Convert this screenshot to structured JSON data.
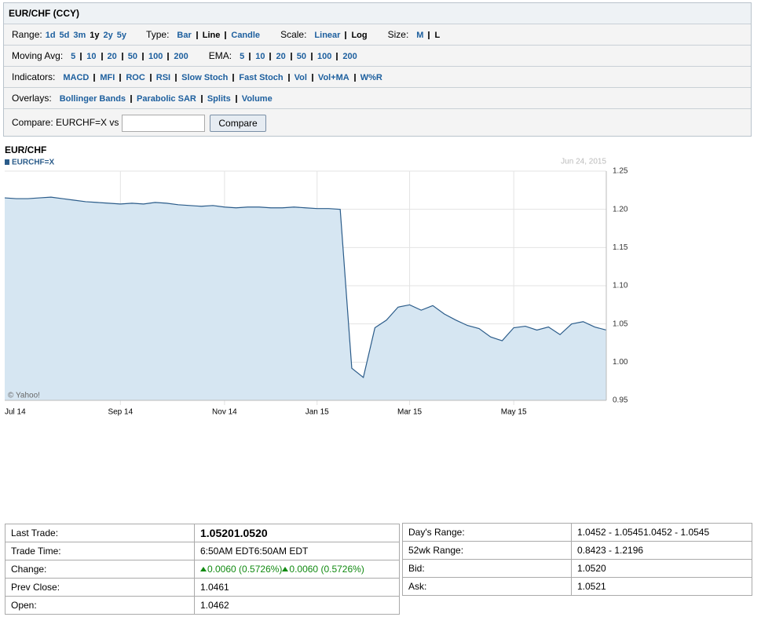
{
  "header": {
    "title": "EUR/CHF (CCY)"
  },
  "controls": [
    [
      {
        "label": "Range:",
        "options": [
          "1d",
          "5d",
          "3m",
          "1y",
          "2y",
          "5y"
        ],
        "active": "1y",
        "separated": false
      },
      {
        "label": "Type:",
        "options": [
          "Bar",
          "Line",
          "Candle"
        ],
        "active": "Line",
        "separated": true
      },
      {
        "label": "Scale:",
        "options": [
          "Linear",
          "Log"
        ],
        "active": "Log",
        "separated": true
      },
      {
        "label": "Size:",
        "options": [
          "M",
          "L"
        ],
        "active": "L",
        "separated": true
      }
    ],
    [
      {
        "label": "Moving Avg:",
        "options": [
          "5",
          "10",
          "20",
          "50",
          "100",
          "200"
        ],
        "separated": true
      },
      {
        "label": "EMA:",
        "options": [
          "5",
          "10",
          "20",
          "50",
          "100",
          "200"
        ],
        "separated": true
      }
    ],
    [
      {
        "label": "Indicators:",
        "options": [
          "MACD",
          "MFI",
          "ROC",
          "RSI",
          "Slow Stoch",
          "Fast Stoch",
          "Vol",
          "Vol+MA",
          "W%R"
        ],
        "separated": true
      }
    ],
    [
      {
        "label": "Overlays:",
        "options": [
          "Bollinger Bands",
          "Parabolic SAR",
          "Splits",
          "Volume"
        ],
        "separated": true
      }
    ]
  ],
  "compare": {
    "label": "Compare:",
    "symbol": "EURCHF=X vs",
    "button": "Compare"
  },
  "chart_data": {
    "type": "area",
    "title": "EUR/CHF",
    "date": "Jun 24, 2015",
    "credit": "© Yahoo!",
    "categories": [
      "Jul 14",
      null,
      null,
      null,
      null,
      null,
      null,
      null,
      null,
      null,
      "Sep 14",
      null,
      null,
      null,
      null,
      null,
      null,
      null,
      null,
      "Nov 14",
      null,
      null,
      null,
      null,
      null,
      null,
      null,
      "Jan 15",
      null,
      null,
      null,
      null,
      null,
      null,
      null,
      "Mar 15",
      null,
      null,
      null,
      null,
      null,
      null,
      null,
      null,
      "May 15",
      null,
      null,
      null,
      null,
      null,
      null,
      null,
      null
    ],
    "series": [
      {
        "name": "EURCHF=X",
        "color": "#2b5c8a",
        "fill": "#d6e6f2",
        "values": [
          1.215,
          1.214,
          1.214,
          1.215,
          1.216,
          1.214,
          1.212,
          1.21,
          1.209,
          1.208,
          1.207,
          1.208,
          1.207,
          1.209,
          1.208,
          1.206,
          1.205,
          1.204,
          1.205,
          1.203,
          1.202,
          1.203,
          1.203,
          1.202,
          1.202,
          1.203,
          1.202,
          1.201,
          1.201,
          1.2,
          0.992,
          0.98,
          1.045,
          1.055,
          1.072,
          1.075,
          1.068,
          1.074,
          1.063,
          1.055,
          1.048,
          1.044,
          1.033,
          1.028,
          1.045,
          1.047,
          1.042,
          1.046,
          1.036,
          1.05,
          1.053,
          1.046,
          1.042
        ]
      }
    ],
    "ylim": [
      0.95,
      1.25
    ],
    "yticks": [
      0.95,
      {
        "value": 1.0,
        "label": "1.00"
      },
      1.05,
      {
        "value": 1.1,
        "label": "1.10"
      },
      1.15,
      {
        "value": 1.2,
        "label": "1.20"
      },
      1.25
    ],
    "grid": true,
    "y_axis_side": "right"
  },
  "quote": {
    "left": [
      [
        "Last Trade:",
        "1.05201.0520"
      ],
      [
        "Trade Time:",
        "6:50AM EDT6:50AM EDT"
      ],
      [
        "Change:",
        [
          "0.0060 (0.5726%)",
          "0.0060 (0.5726%)"
        ]
      ],
      [
        "Prev Close:",
        "1.0461"
      ],
      [
        "Open:",
        "1.0462"
      ]
    ],
    "right": [
      [
        "Day's Range:",
        "1.0452 - 1.05451.0452 - 1.0545"
      ],
      [
        "52wk Range:",
        "0.8423 - 1.2196"
      ],
      [
        "Bid:",
        "1.0520"
      ],
      [
        "Ask:",
        "1.0521"
      ]
    ]
  }
}
